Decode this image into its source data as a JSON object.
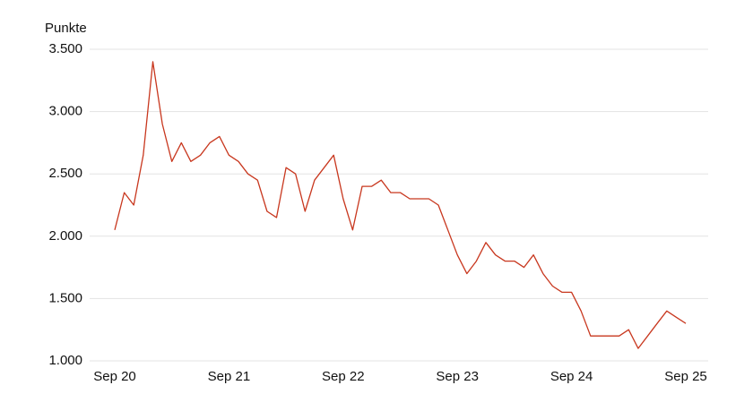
{
  "chart_data": {
    "type": "line",
    "y_label": "Punkte",
    "x": [
      "2020-09",
      "2020-10",
      "2020-11",
      "2020-12",
      "2021-01",
      "2021-02",
      "2021-03",
      "2021-04",
      "2021-05",
      "2021-06",
      "2021-07",
      "2021-08",
      "2021-09",
      "2021-10",
      "2021-11",
      "2021-12",
      "2022-01",
      "2022-02",
      "2022-03",
      "2022-04",
      "2022-05",
      "2022-06",
      "2022-07",
      "2022-08",
      "2022-09",
      "2022-10",
      "2022-11",
      "2022-12",
      "2023-01",
      "2023-02",
      "2023-03",
      "2023-04",
      "2023-05",
      "2023-06",
      "2023-07",
      "2023-08",
      "2023-09",
      "2023-10",
      "2023-11",
      "2023-12",
      "2024-01",
      "2024-02",
      "2024-03",
      "2024-04",
      "2024-05",
      "2024-06",
      "2024-07",
      "2024-08",
      "2024-09",
      "2024-10",
      "2024-11",
      "2024-12",
      "2025-01",
      "2025-02",
      "2025-03",
      "2025-04",
      "2025-05",
      "2025-06",
      "2025-07",
      "2025-08",
      "2025-09"
    ],
    "series": [
      {
        "color": "#c8371e",
        "values": [
          2050,
          2350,
          2250,
          2650,
          3400,
          2900,
          2600,
          2750,
          2600,
          2650,
          2750,
          2800,
          2650,
          2600,
          2500,
          2450,
          2200,
          2150,
          2550,
          2500,
          2200,
          2450,
          2550,
          2650,
          2300,
          2050,
          2400,
          2400,
          2450,
          2350,
          2350,
          2300,
          2300,
          2300,
          2250,
          2050,
          1850,
          1700,
          1800,
          1950,
          1850,
          1800,
          1800,
          1750,
          1850,
          1700,
          1600,
          1550,
          1550,
          1400,
          1200,
          1200,
          1200,
          1200,
          1250,
          1100,
          1200,
          1300,
          1400,
          1350,
          1300
        ]
      }
    ],
    "xlim": [
      "2020-09",
      "2025-09"
    ],
    "xticks": [
      {
        "value": "2020-09",
        "label": "Sep 20"
      },
      {
        "value": "2021-09",
        "label": "Sep 21"
      },
      {
        "value": "2022-09",
        "label": "Sep 22"
      },
      {
        "value": "2023-09",
        "label": "Sep 23"
      },
      {
        "value": "2024-09",
        "label": "Sep 24"
      },
      {
        "value": "2025-09",
        "label": "Sep 25"
      }
    ],
    "ylim": [
      1000,
      3500
    ],
    "yticks": [
      {
        "value": 1000,
        "label": "1.000"
      },
      {
        "value": 1500,
        "label": "1.500"
      },
      {
        "value": 2000,
        "label": "2.000"
      },
      {
        "value": 2500,
        "label": "2.500"
      },
      {
        "value": 3000,
        "label": "3.000"
      },
      {
        "value": 3500,
        "label": "3.500"
      }
    ],
    "grid": true
  }
}
